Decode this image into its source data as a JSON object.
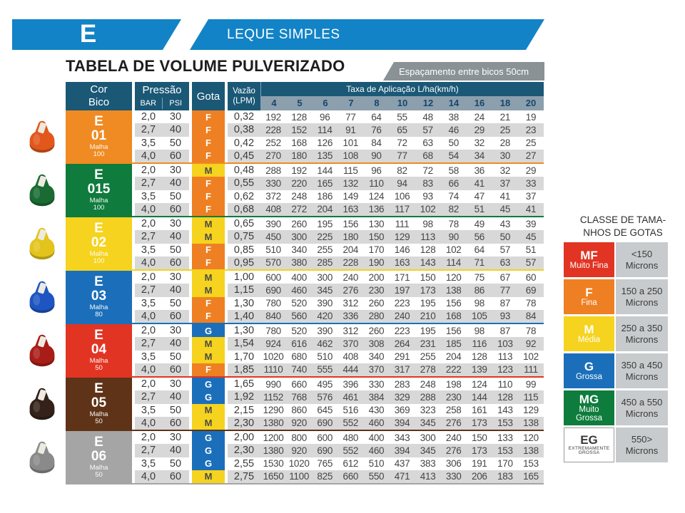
{
  "header": {
    "tab_letter": "E",
    "banner": "LEQUE SIMPLES",
    "title": "TABELA DE VOLUME PULVERIZADO",
    "badge": "Espaçamento entre bicos 50cm"
  },
  "table": {
    "col_cor": "Cor",
    "col_bico": "Bico",
    "col_pressao": "Pressão",
    "col_bar": "BAR",
    "col_psi": "PSI",
    "col_gota": "Gota",
    "col_vazao_line1": "Vazão",
    "col_vazao_line2": "(LPM)",
    "taxa_header": "Taxa de Aplicação L/ha(km/h)",
    "speeds": [
      "4",
      "5",
      "6",
      "7",
      "8",
      "10",
      "12",
      "14",
      "16",
      "18",
      "20"
    ]
  },
  "gota_styles": {
    "F": {
      "bg": "#EE8023",
      "fg": "#FFFFFF"
    },
    "M": {
      "bg": "#F5D31E",
      "fg": "#4A4A4A"
    },
    "G": {
      "bg": "#1B6FBA",
      "fg": "#FFFFFF"
    }
  },
  "groups": [
    {
      "prefix": "E",
      "model": "01",
      "malha_label": "Malha",
      "malha": "100",
      "color": "#EF8B22",
      "nozzle_color": "#E2571C",
      "rows": [
        {
          "bar": "2,0",
          "psi": "30",
          "gota": "F",
          "vazao": "0,32",
          "taxa": [
            "192",
            "128",
            "96",
            "77",
            "64",
            "55",
            "48",
            "38",
            "24",
            "21",
            "19"
          ]
        },
        {
          "bar": "2,7",
          "psi": "40",
          "gota": "F",
          "vazao": "0,38",
          "taxa": [
            "228",
            "152",
            "114",
            "91",
            "76",
            "65",
            "57",
            "46",
            "29",
            "25",
            "23"
          ]
        },
        {
          "bar": "3,5",
          "psi": "50",
          "gota": "F",
          "vazao": "0,42",
          "taxa": [
            "252",
            "168",
            "126",
            "101",
            "84",
            "72",
            "63",
            "50",
            "32",
            "28",
            "25"
          ]
        },
        {
          "bar": "4,0",
          "psi": "60",
          "gota": "F",
          "vazao": "0,45",
          "taxa": [
            "270",
            "180",
            "135",
            "108",
            "90",
            "77",
            "68",
            "54",
            "34",
            "30",
            "27"
          ]
        }
      ]
    },
    {
      "prefix": "E",
      "model": "015",
      "malha_label": "Malha",
      "malha": "100",
      "color": "#0F7B3D",
      "nozzle_color": "#1A6B33",
      "rows": [
        {
          "bar": "2,0",
          "psi": "30",
          "gota": "M",
          "vazao": "0,48",
          "taxa": [
            "288",
            "192",
            "144",
            "115",
            "96",
            "82",
            "72",
            "58",
            "36",
            "32",
            "29"
          ]
        },
        {
          "bar": "2,7",
          "psi": "40",
          "gota": "F",
          "vazao": "0,55",
          "taxa": [
            "330",
            "220",
            "165",
            "132",
            "110",
            "94",
            "83",
            "66",
            "41",
            "37",
            "33"
          ]
        },
        {
          "bar": "3,5",
          "psi": "50",
          "gota": "F",
          "vazao": "0,62",
          "taxa": [
            "372",
            "248",
            "186",
            "149",
            "124",
            "106",
            "93",
            "74",
            "47",
            "41",
            "37"
          ]
        },
        {
          "bar": "4,0",
          "psi": "60",
          "gota": "F",
          "vazao": "0,68",
          "taxa": [
            "408",
            "272",
            "204",
            "163",
            "136",
            "117",
            "102",
            "82",
            "51",
            "45",
            "41"
          ]
        }
      ]
    },
    {
      "prefix": "E",
      "model": "02",
      "malha_label": "Malha",
      "malha": "100",
      "color": "#F5D31E",
      "nozzle_color": "#E3C41C",
      "rows": [
        {
          "bar": "2,0",
          "psi": "30",
          "gota": "M",
          "vazao": "0,65",
          "taxa": [
            "390",
            "260",
            "195",
            "156",
            "130",
            "111",
            "98",
            "78",
            "49",
            "43",
            "39"
          ]
        },
        {
          "bar": "2,7",
          "psi": "40",
          "gota": "M",
          "vazao": "0,75",
          "taxa": [
            "450",
            "300",
            "225",
            "180",
            "150",
            "129",
            "113",
            "90",
            "56",
            "50",
            "45"
          ]
        },
        {
          "bar": "3,5",
          "psi": "50",
          "gota": "F",
          "vazao": "0,85",
          "taxa": [
            "510",
            "340",
            "255",
            "204",
            "170",
            "146",
            "128",
            "102",
            "64",
            "57",
            "51"
          ]
        },
        {
          "bar": "4,0",
          "psi": "60",
          "gota": "F",
          "vazao": "0,95",
          "taxa": [
            "570",
            "380",
            "285",
            "228",
            "190",
            "163",
            "143",
            "114",
            "71",
            "63",
            "57"
          ]
        }
      ]
    },
    {
      "prefix": "E",
      "model": "03",
      "malha_label": "Malha",
      "malha": "80",
      "color": "#1B6FBA",
      "nozzle_color": "#1E55C2",
      "rows": [
        {
          "bar": "2,0",
          "psi": "30",
          "gota": "M",
          "vazao": "1,00",
          "taxa": [
            "600",
            "400",
            "300",
            "240",
            "200",
            "171",
            "150",
            "120",
            "75",
            "67",
            "60"
          ]
        },
        {
          "bar": "2,7",
          "psi": "40",
          "gota": "M",
          "vazao": "1,15",
          "taxa": [
            "690",
            "460",
            "345",
            "276",
            "230",
            "197",
            "173",
            "138",
            "86",
            "77",
            "69"
          ]
        },
        {
          "bar": "3,5",
          "psi": "50",
          "gota": "F",
          "vazao": "1,30",
          "taxa": [
            "780",
            "520",
            "390",
            "312",
            "260",
            "223",
            "195",
            "156",
            "98",
            "87",
            "78"
          ]
        },
        {
          "bar": "4,0",
          "psi": "60",
          "gota": "F",
          "vazao": "1,40",
          "taxa": [
            "840",
            "560",
            "420",
            "336",
            "280",
            "240",
            "210",
            "168",
            "105",
            "93",
            "84"
          ]
        }
      ]
    },
    {
      "prefix": "E",
      "model": "04",
      "malha_label": "Malha",
      "malha": "50",
      "color": "#E23423",
      "nozzle_color": "#A81D18",
      "rows": [
        {
          "bar": "2,0",
          "psi": "30",
          "gota": "G",
          "vazao": "1,30",
          "taxa": [
            "780",
            "520",
            "390",
            "312",
            "260",
            "223",
            "195",
            "156",
            "98",
            "87",
            "78"
          ]
        },
        {
          "bar": "2,7",
          "psi": "40",
          "gota": "M",
          "vazao": "1,54",
          "taxa": [
            "924",
            "616",
            "462",
            "370",
            "308",
            "264",
            "231",
            "185",
            "116",
            "103",
            "92"
          ]
        },
        {
          "bar": "3,5",
          "psi": "50",
          "gota": "M",
          "vazao": "1,70",
          "taxa": [
            "1020",
            "680",
            "510",
            "408",
            "340",
            "291",
            "255",
            "204",
            "128",
            "113",
            "102"
          ]
        },
        {
          "bar": "4,0",
          "psi": "60",
          "gota": "F",
          "vazao": "1,85",
          "taxa": [
            "1110",
            "740",
            "555",
            "444",
            "370",
            "317",
            "278",
            "222",
            "139",
            "123",
            "111"
          ]
        }
      ]
    },
    {
      "prefix": "E",
      "model": "05",
      "malha_label": "Malha",
      "malha": "50",
      "color": "#5E3317",
      "nozzle_color": "#33211A",
      "rows": [
        {
          "bar": "2,0",
          "psi": "30",
          "gota": "G",
          "vazao": "1,65",
          "taxa": [
            "990",
            "660",
            "495",
            "396",
            "330",
            "283",
            "248",
            "198",
            "124",
            "110",
            "99"
          ]
        },
        {
          "bar": "2,7",
          "psi": "40",
          "gota": "G",
          "vazao": "1,92",
          "taxa": [
            "1152",
            "768",
            "576",
            "461",
            "384",
            "329",
            "288",
            "230",
            "144",
            "128",
            "115"
          ]
        },
        {
          "bar": "3,5",
          "psi": "50",
          "gota": "M",
          "vazao": "2,15",
          "taxa": [
            "1290",
            "860",
            "645",
            "516",
            "430",
            "369",
            "323",
            "258",
            "161",
            "143",
            "129"
          ]
        },
        {
          "bar": "4,0",
          "psi": "60",
          "gota": "M",
          "vazao": "2,30",
          "taxa": [
            "1380",
            "920",
            "690",
            "552",
            "460",
            "394",
            "345",
            "276",
            "173",
            "153",
            "138"
          ]
        }
      ]
    },
    {
      "prefix": "E",
      "model": "06",
      "malha_label": "Malha",
      "malha": "50",
      "color": "#A5A5A5",
      "nozzle_color": "#8A8A8A",
      "rows": [
        {
          "bar": "2,0",
          "psi": "30",
          "gota": "G",
          "vazao": "2,00",
          "taxa": [
            "1200",
            "800",
            "600",
            "480",
            "400",
            "343",
            "300",
            "240",
            "150",
            "133",
            "120"
          ]
        },
        {
          "bar": "2,7",
          "psi": "40",
          "gota": "G",
          "vazao": "2,30",
          "taxa": [
            "1380",
            "920",
            "690",
            "552",
            "460",
            "394",
            "345",
            "276",
            "173",
            "153",
            "138"
          ]
        },
        {
          "bar": "3,5",
          "psi": "50",
          "gota": "G",
          "vazao": "2,55",
          "taxa": [
            "1530",
            "1020",
            "765",
            "612",
            "510",
            "437",
            "383",
            "306",
            "191",
            "170",
            "153"
          ]
        },
        {
          "bar": "4,0",
          "psi": "60",
          "gota": "M",
          "vazao": "2,75",
          "taxa": [
            "1650",
            "1100",
            "825",
            "660",
            "550",
            "471",
            "413",
            "330",
            "206",
            "183",
            "165"
          ]
        }
      ]
    }
  ],
  "legend": {
    "title_line1": "CLASSE DE TAMA-",
    "title_line2": "NHOS DE GOTAS",
    "items": [
      {
        "code": "MF",
        "name_lines": [
          "Muito Fina"
        ],
        "range_lines": [
          "<150",
          "Microns"
        ],
        "bg": "#E23423",
        "fg": "#FFFFFF"
      },
      {
        "code": "F",
        "name_lines": [
          "Fina"
        ],
        "range_lines": [
          "150 a 250",
          "Microns"
        ],
        "bg": "#EE8023",
        "fg": "#FFFFFF"
      },
      {
        "code": "M",
        "name_lines": [
          "Média"
        ],
        "range_lines": [
          "250 a 350",
          "Microns"
        ],
        "bg": "#F5D31E",
        "fg": "#FFFFFF"
      },
      {
        "code": "G",
        "name_lines": [
          "Grossa"
        ],
        "range_lines": [
          "350 a 450",
          "Microns"
        ],
        "bg": "#1B6FBA",
        "fg": "#FFFFFF"
      },
      {
        "code": "MG",
        "name_lines": [
          "Muito",
          "Grossa"
        ],
        "range_lines": [
          "450 a 550",
          "Microns"
        ],
        "bg": "#0E7C3C",
        "fg": "#FFFFFF"
      },
      {
        "code": "EG",
        "name_lines": [
          "EXTREMAMENTE",
          "GROSSA"
        ],
        "range_lines": [
          "550>",
          "Microns"
        ],
        "bg": "#FFFFFF",
        "fg": "#3A3A3A"
      }
    ]
  },
  "colors": {
    "banner_blue": "#1283C6",
    "header_dark_blue": "#1A5876",
    "speeds_strip": "#8C9FAD",
    "stripe_gray": "#D8D8D8",
    "badge_gray": "#8A9296"
  }
}
